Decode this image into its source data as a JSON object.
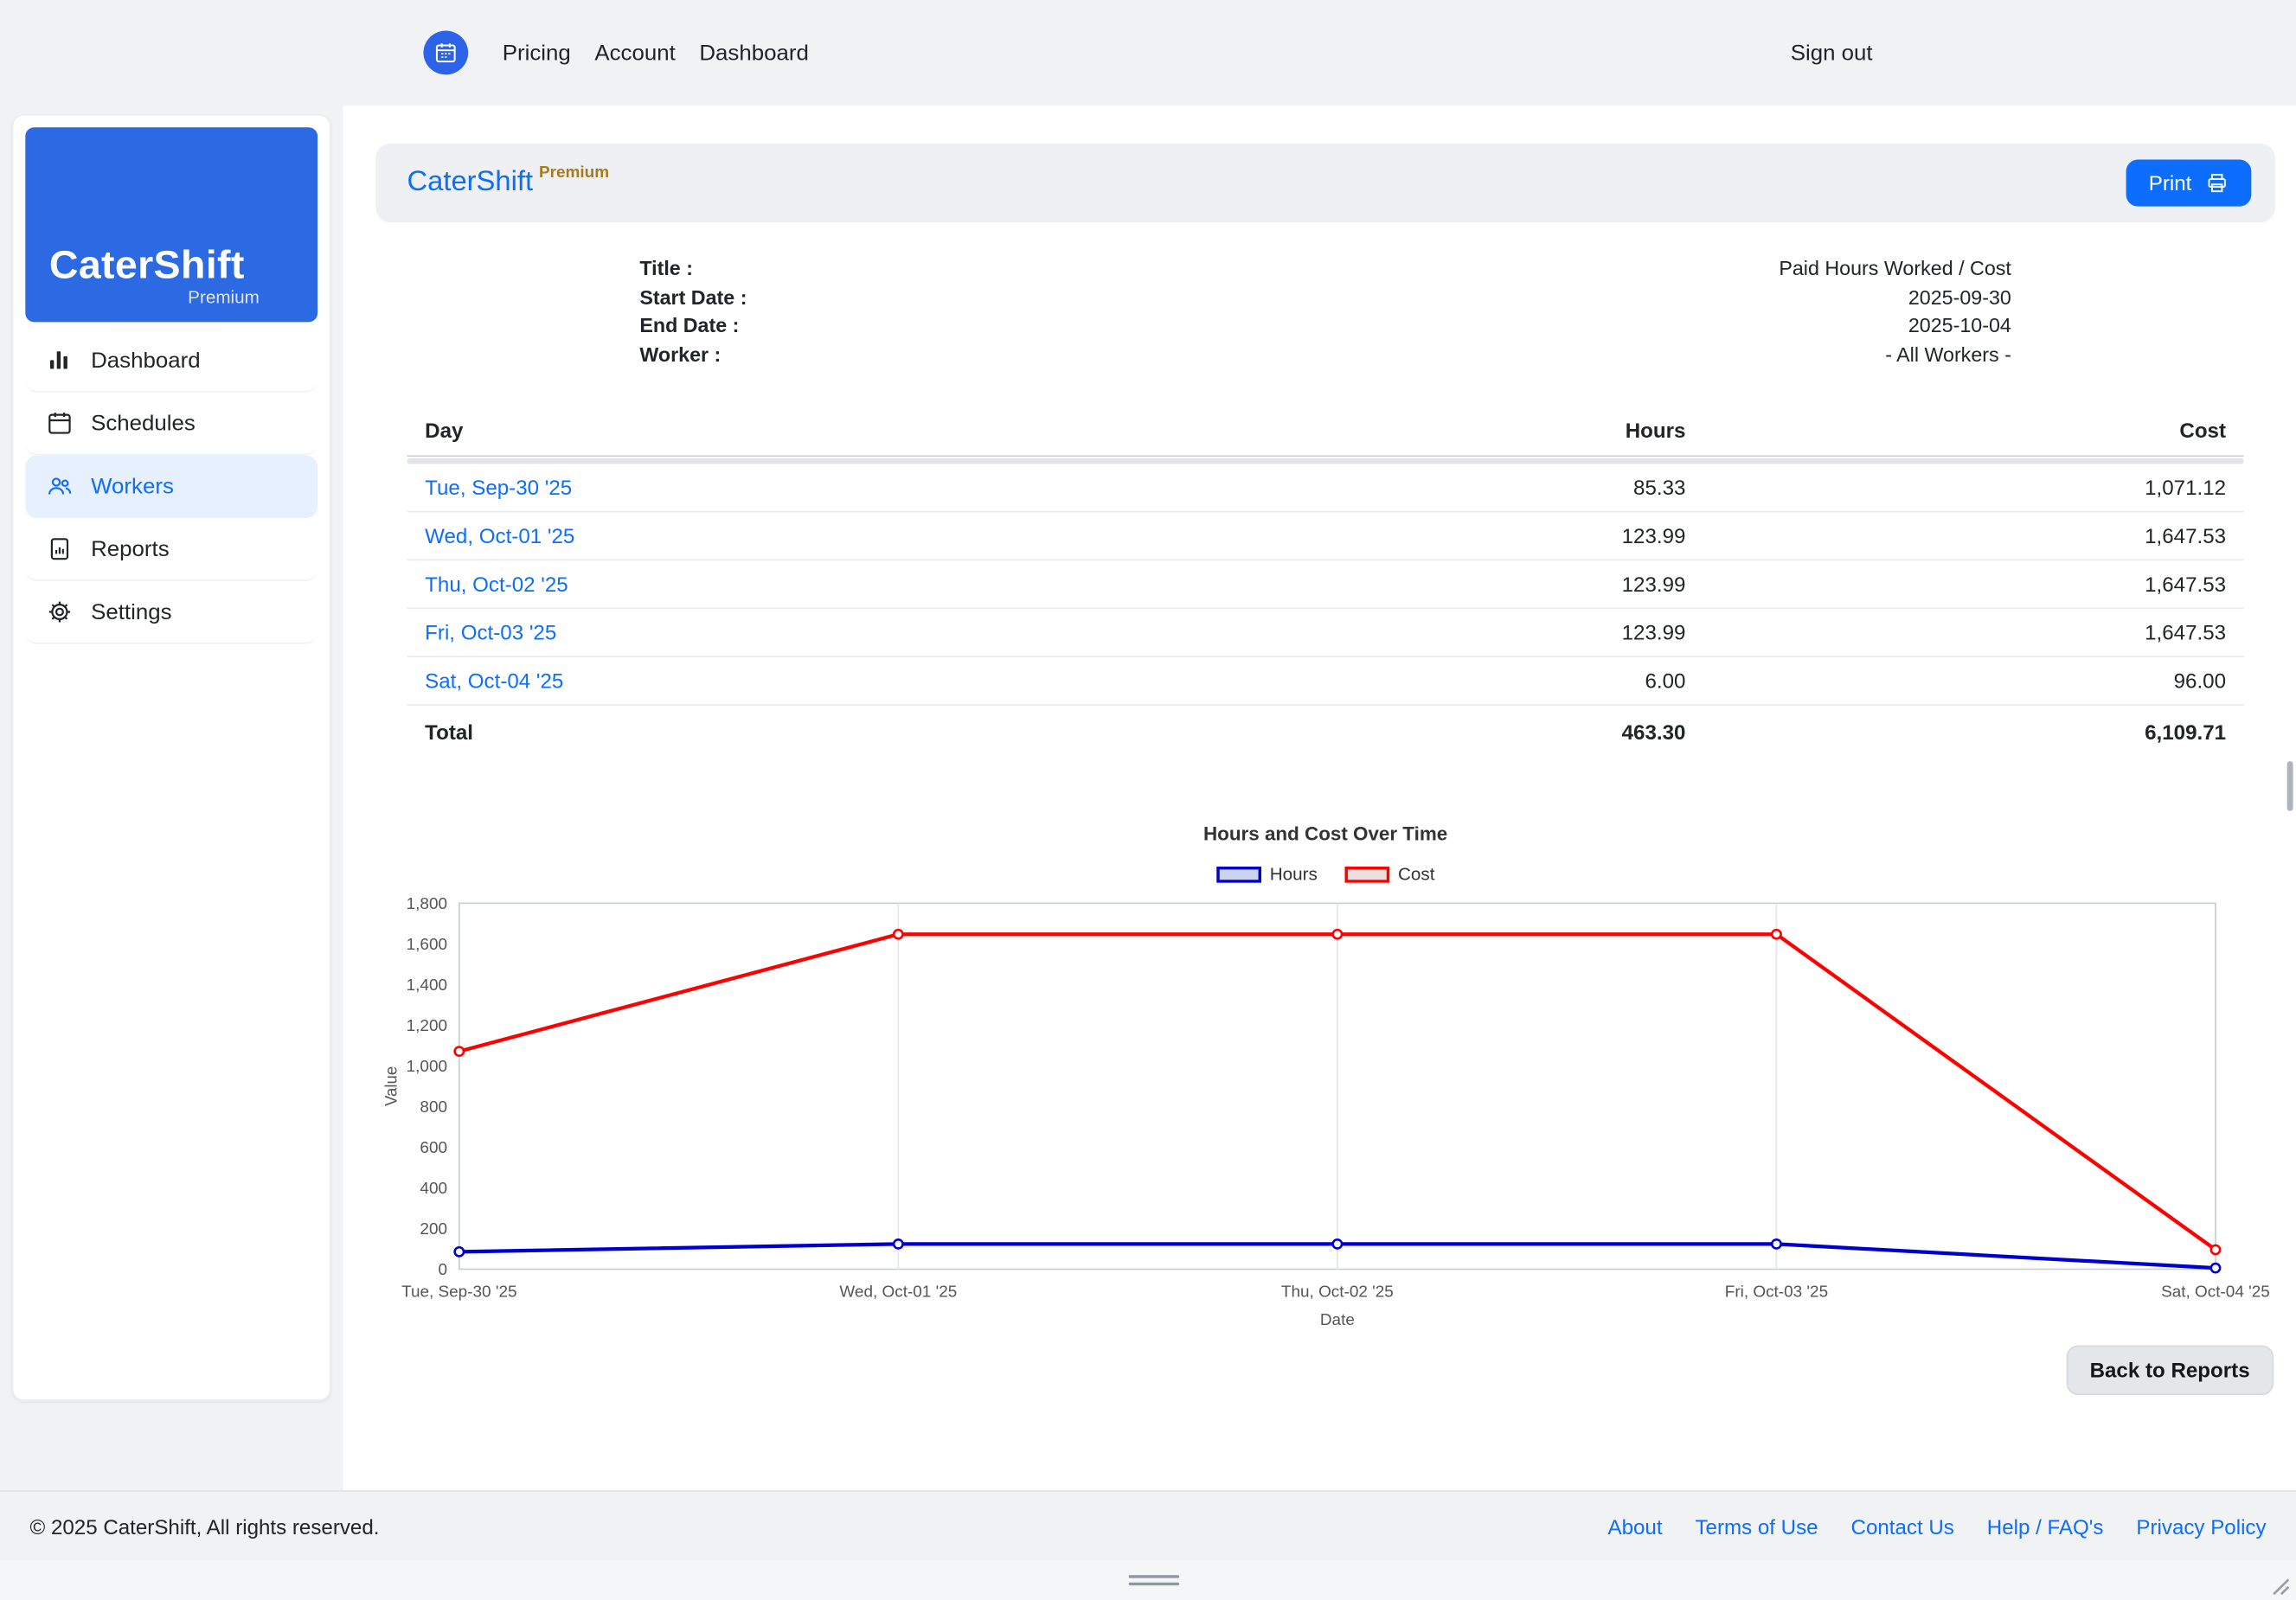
{
  "topnav": {
    "links": [
      "Pricing",
      "Account",
      "Dashboard"
    ],
    "signout": "Sign out"
  },
  "sidebar": {
    "logo_title": "CaterShift",
    "logo_subtitle": "Premium",
    "items": [
      {
        "label": "Dashboard",
        "icon": "bar-chart-icon",
        "active": false
      },
      {
        "label": "Schedules",
        "icon": "calendar-icon",
        "active": false
      },
      {
        "label": "Workers",
        "icon": "people-icon",
        "active": true
      },
      {
        "label": "Reports",
        "icon": "file-chart-icon",
        "active": false
      },
      {
        "label": "Settings",
        "icon": "gear-icon",
        "active": false
      }
    ]
  },
  "report": {
    "brand": "CaterShift",
    "brand_badge": "Premium",
    "print_label": "Print",
    "meta": {
      "rows": [
        {
          "label": "Title :",
          "value": "Paid Hours Worked / Cost"
        },
        {
          "label": "Start Date :",
          "value": "2025-09-30"
        },
        {
          "label": "End Date :",
          "value": "2025-10-04"
        },
        {
          "label": "Worker :",
          "value": "- All Workers -"
        }
      ]
    },
    "table": {
      "columns": [
        "Day",
        "Hours",
        "Cost"
      ],
      "rows": [
        {
          "day": "Tue, Sep-30 '25",
          "hours": "85.33",
          "cost": "1,071.12"
        },
        {
          "day": "Wed, Oct-01 '25",
          "hours": "123.99",
          "cost": "1,647.53"
        },
        {
          "day": "Thu, Oct-02 '25",
          "hours": "123.99",
          "cost": "1,647.53"
        },
        {
          "day": "Fri, Oct-03 '25",
          "hours": "123.99",
          "cost": "1,647.53"
        },
        {
          "day": "Sat, Oct-04 '25",
          "hours": "6.00",
          "cost": "96.00"
        }
      ],
      "total": {
        "label": "Total",
        "hours": "463.30",
        "cost": "6,109.71"
      }
    },
    "back_label": "Back to Reports"
  },
  "chart_data": {
    "type": "line",
    "title": "Hours and Cost Over Time",
    "categories": [
      "Tue, Sep-30 '25",
      "Wed, Oct-01 '25",
      "Thu, Oct-02 '25",
      "Fri, Oct-03 '25",
      "Sat, Oct-04 '25"
    ],
    "series": [
      {
        "name": "Hours",
        "color": "#0000cc",
        "swatch_fill": "#ccd3f1",
        "values": [
          85.33,
          123.99,
          123.99,
          123.99,
          6.0
        ]
      },
      {
        "name": "Cost",
        "color": "#ff0000",
        "swatch_fill": "#efdede",
        "values": [
          1071.12,
          1647.53,
          1647.53,
          1647.53,
          96.0
        ]
      }
    ],
    "xlabel": "Date",
    "ylabel": "Value",
    "ylim": [
      0,
      1800
    ],
    "ytick_step": 200,
    "grid": "vertical",
    "legend_position": "top"
  },
  "footer": {
    "copyright": "© 2025 CaterShift, All rights reserved.",
    "links": [
      "About",
      "Terms of Use",
      "Contact Us",
      "Help / FAQ's",
      "Privacy Policy"
    ]
  },
  "colors": {
    "accent": "#0d6efd",
    "logo_bg": "#2b6ae3",
    "sidebar_active_bg": "#e7f0fe",
    "hours_line": "#0000cc",
    "cost_line": "#ff0000"
  }
}
